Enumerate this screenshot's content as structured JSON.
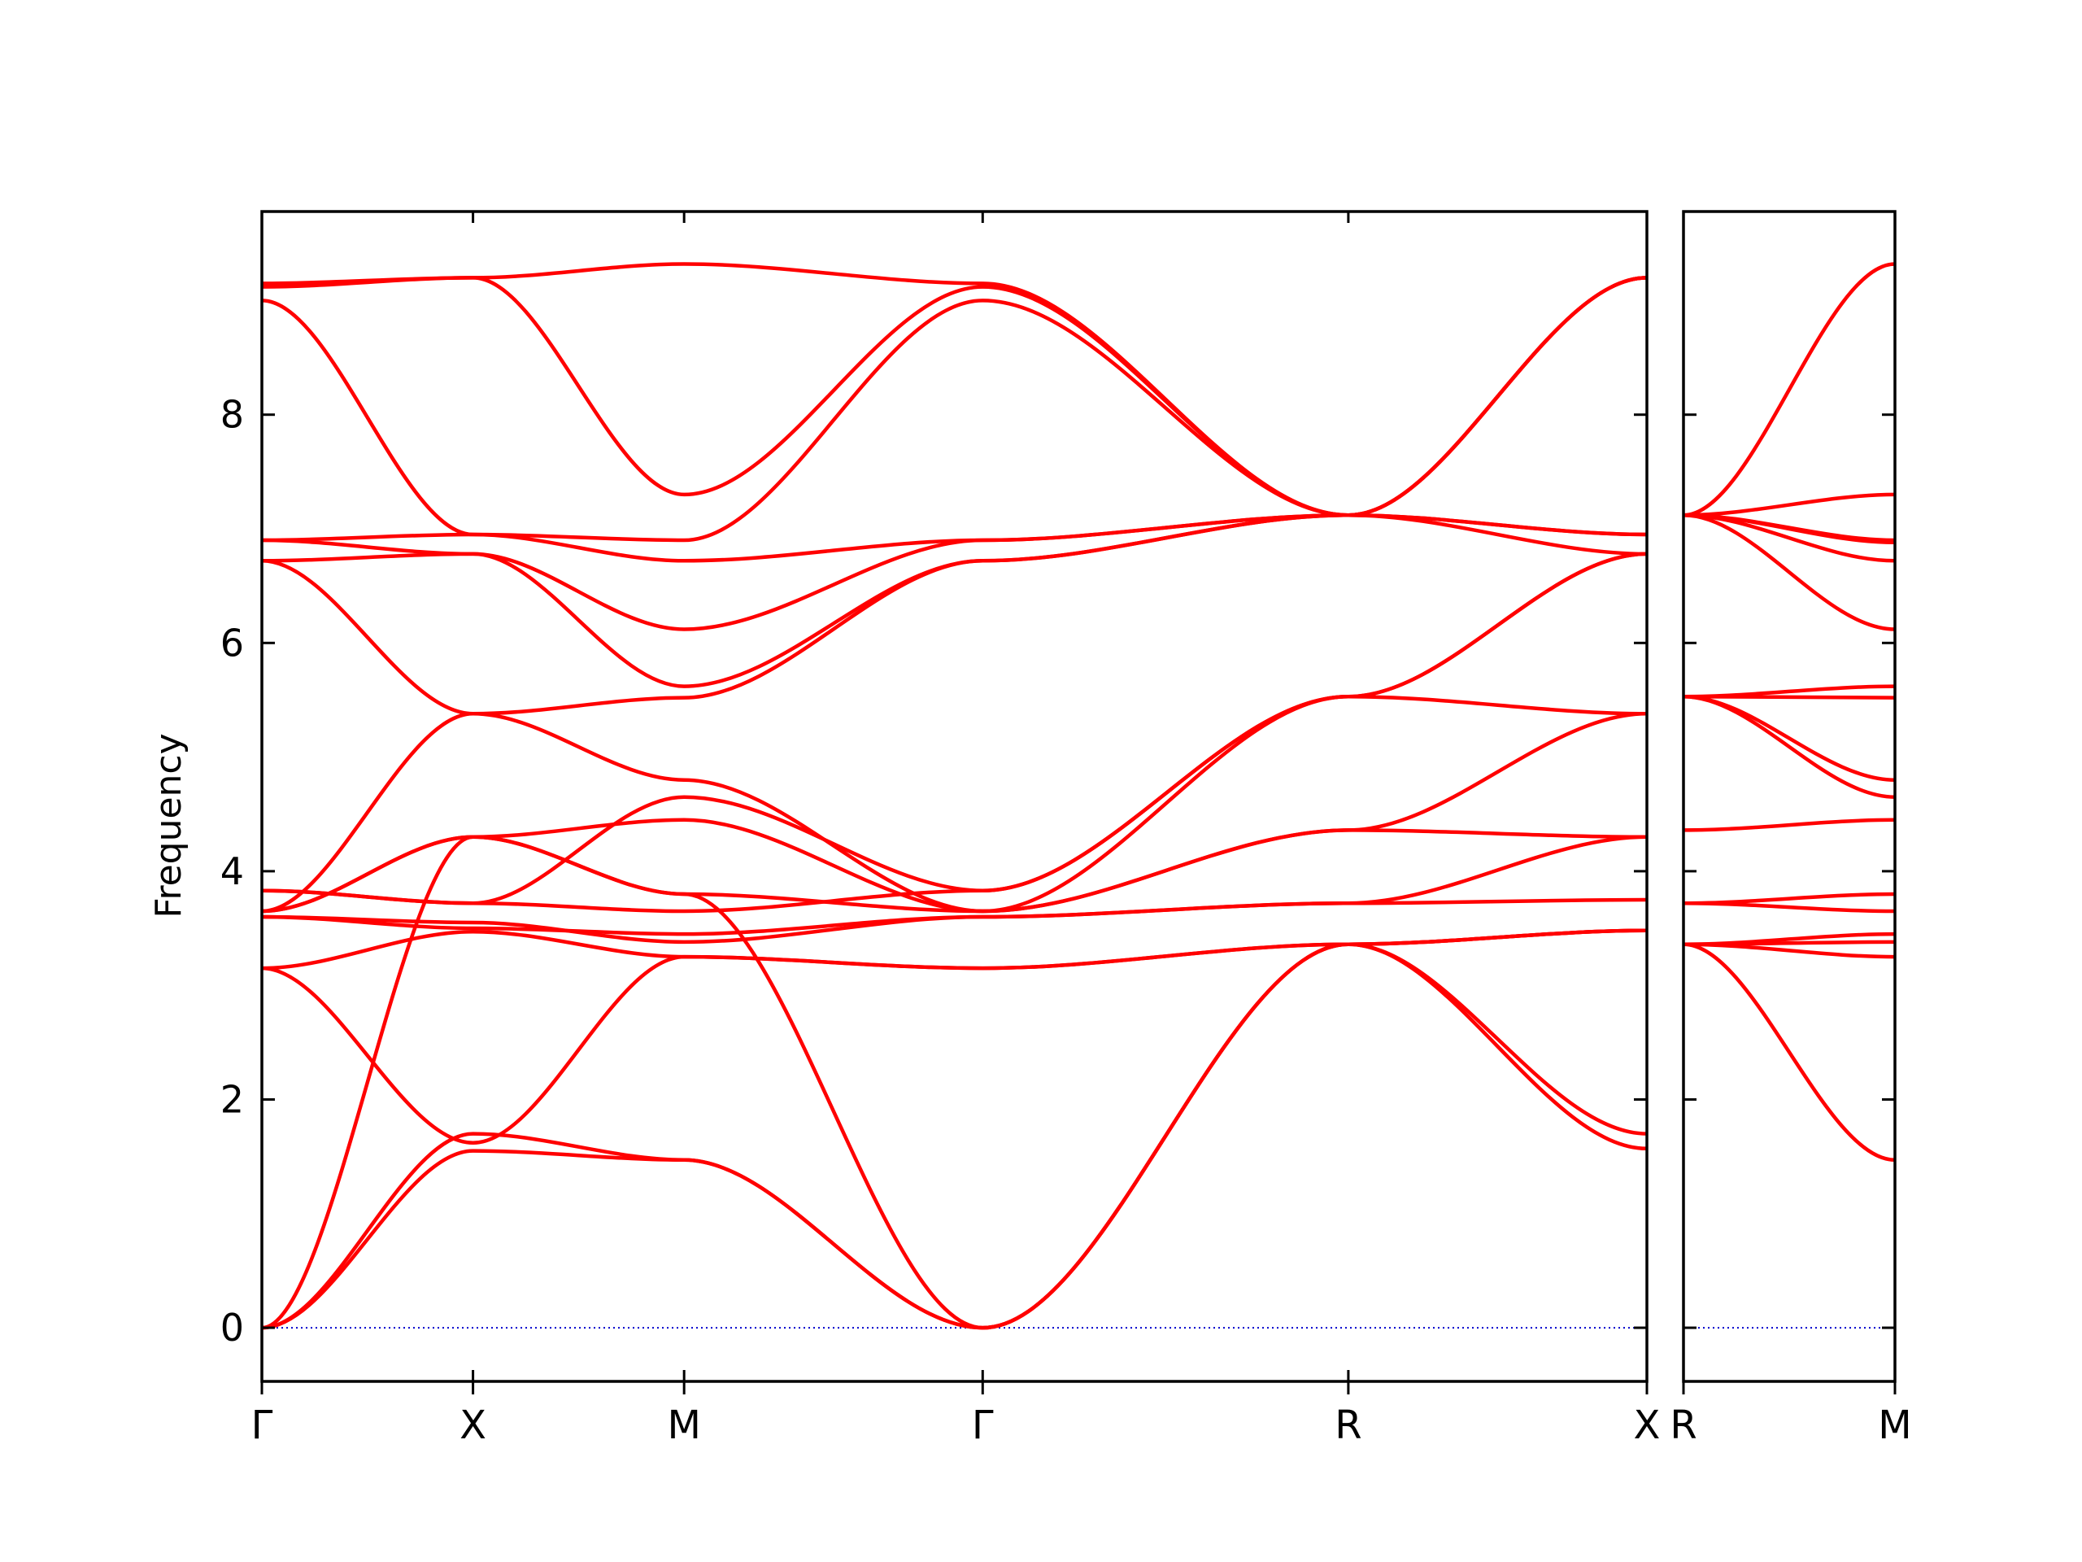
{
  "chart_data": {
    "type": "line",
    "title": "",
    "ylabel": "Frequency",
    "ylim": [
      -0.47,
      9.78
    ],
    "yticks": [
      0,
      2,
      4,
      6,
      8
    ],
    "grid": false,
    "legend": "none",
    "colors": {
      "bands": "#ff0000",
      "zero_line": "#0000cc",
      "axes": "#000000"
    },
    "panels": [
      {
        "name": "path-main",
        "segments": [
          {
            "from": "Γ",
            "to": "X",
            "length": 0.5
          },
          {
            "from": "X",
            "to": "M",
            "length": 0.5
          },
          {
            "from": "M",
            "to": "Γ",
            "length": 0.7071
          },
          {
            "from": "Γ",
            "to": "R",
            "length": 0.866
          },
          {
            "from": "R",
            "to": "X",
            "length": 0.7071
          }
        ],
        "tick_labels": [
          "Γ",
          "X",
          "M",
          "Γ",
          "R",
          "X"
        ],
        "bands": [
          [
            [
              0,
              0
            ],
            [
              0.5,
              1.55
            ],
            [
              1.0,
              1.47
            ],
            [
              1.7071,
              0
            ],
            [
              2.5731,
              3.36
            ],
            [
              3.2802,
              1.57
            ]
          ],
          [
            [
              0,
              0
            ],
            [
              0.5,
              1.7
            ],
            [
              1.0,
              1.47
            ],
            [
              1.7071,
              0
            ],
            [
              2.5731,
              3.36
            ],
            [
              3.2802,
              1.7
            ]
          ],
          [
            [
              0,
              0
            ],
            [
              0.5,
              4.3
            ],
            [
              1.0,
              3.8
            ],
            [
              1.7071,
              0
            ],
            [
              2.5731,
              3.36
            ],
            [
              3.2802,
              3.48
            ]
          ],
          [
            [
              0,
              3.15
            ],
            [
              0.5,
              1.62
            ],
            [
              1.0,
              3.25
            ],
            [
              1.7071,
              3.15
            ],
            [
              2.5731,
              3.36
            ],
            [
              3.2802,
              3.48
            ]
          ],
          [
            [
              0,
              3.15
            ],
            [
              0.5,
              3.47
            ],
            [
              1.0,
              3.25
            ],
            [
              1.7071,
              3.15
            ],
            [
              2.5731,
              3.36
            ],
            [
              3.2802,
              3.48
            ]
          ],
          [
            [
              0,
              3.6
            ],
            [
              0.5,
              3.5
            ],
            [
              1.0,
              3.45
            ],
            [
              1.7071,
              3.6
            ],
            [
              2.5731,
              3.72
            ],
            [
              3.2802,
              3.75
            ]
          ],
          [
            [
              0,
              3.6
            ],
            [
              0.5,
              3.55
            ],
            [
              1.0,
              3.38
            ],
            [
              1.7071,
              3.6
            ],
            [
              2.5731,
              3.72
            ],
            [
              3.2802,
              4.3
            ]
          ],
          [
            [
              0,
              3.65
            ],
            [
              0.5,
              4.3
            ],
            [
              1.0,
              3.8
            ],
            [
              1.7071,
              3.65
            ],
            [
              2.5731,
              4.36
            ],
            [
              3.2802,
              4.3
            ]
          ],
          [
            [
              0,
              3.65
            ],
            [
              0.5,
              4.3
            ],
            [
              1.0,
              4.45
            ],
            [
              1.7071,
              3.65
            ],
            [
              2.5731,
              4.36
            ],
            [
              3.2802,
              5.38
            ]
          ],
          [
            [
              0,
              3.83
            ],
            [
              0.5,
              3.72
            ],
            [
              1.0,
              3.65
            ],
            [
              1.7071,
              3.83
            ],
            [
              2.5731,
              5.53
            ],
            [
              3.2802,
              5.38
            ]
          ],
          [
            [
              0,
              3.83
            ],
            [
              0.5,
              3.72
            ],
            [
              1.0,
              4.65
            ],
            [
              1.7071,
              3.83
            ],
            [
              2.5731,
              5.53
            ],
            [
              3.2802,
              6.78
            ]
          ],
          [
            [
              0,
              3.65
            ],
            [
              0.5,
              5.38
            ],
            [
              1.0,
              4.8
            ],
            [
              1.7071,
              3.65
            ],
            [
              2.5731,
              5.53
            ],
            [
              3.2802,
              6.78
            ]
          ],
          [
            [
              0,
              6.72
            ],
            [
              0.5,
              5.38
            ],
            [
              1.0,
              5.52
            ],
            [
              1.7071,
              6.72
            ],
            [
              2.5731,
              7.12
            ],
            [
              3.2802,
              6.95
            ]
          ],
          [
            [
              0,
              6.72
            ],
            [
              0.5,
              6.78
            ],
            [
              1.0,
              5.62
            ],
            [
              1.7071,
              6.72
            ],
            [
              2.5731,
              7.12
            ],
            [
              3.2802,
              6.95
            ]
          ],
          [
            [
              0,
              6.9
            ],
            [
              0.5,
              6.78
            ],
            [
              1.0,
              6.12
            ],
            [
              1.7071,
              6.9
            ],
            [
              2.5731,
              7.12
            ],
            [
              3.2802,
              6.78
            ]
          ],
          [
            [
              0,
              6.9
            ],
            [
              0.5,
              6.95
            ],
            [
              1.0,
              6.72
            ],
            [
              1.7071,
              6.9
            ],
            [
              2.5731,
              7.12
            ],
            [
              3.2802,
              9.2
            ]
          ],
          [
            [
              0,
              9.0
            ],
            [
              0.5,
              6.95
            ],
            [
              1.0,
              6.9
            ],
            [
              1.7071,
              9.0
            ],
            [
              2.5731,
              7.12
            ],
            [
              3.2802,
              9.2
            ]
          ],
          [
            [
              0,
              9.12
            ],
            [
              0.5,
              9.2
            ],
            [
              1.0,
              7.3
            ],
            [
              1.7071,
              9.12
            ],
            [
              2.5731,
              7.12
            ],
            [
              3.2802,
              9.2
            ]
          ],
          [
            [
              0,
              9.15
            ],
            [
              0.5,
              9.2
            ],
            [
              1.0,
              9.32
            ],
            [
              1.7071,
              9.15
            ],
            [
              2.5731,
              7.12
            ],
            [
              3.2802,
              9.2
            ]
          ]
        ]
      },
      {
        "name": "path-side",
        "segments": [
          {
            "from": "R",
            "to": "M",
            "length": 0.7071
          }
        ],
        "tick_labels": [
          "R",
          "M"
        ],
        "bands": [
          [
            [
              0,
              3.36
            ],
            [
              0.7071,
              1.47
            ]
          ],
          [
            [
              0,
              3.36
            ],
            [
              0.7071,
              3.25
            ]
          ],
          [
            [
              0,
              3.36
            ],
            [
              0.7071,
              3.38
            ]
          ],
          [
            [
              0,
              3.36
            ],
            [
              0.7071,
              3.45
            ]
          ],
          [
            [
              0,
              3.72
            ],
            [
              0.7071,
              3.65
            ]
          ],
          [
            [
              0,
              3.72
            ],
            [
              0.7071,
              3.8
            ]
          ],
          [
            [
              0,
              4.36
            ],
            [
              0.7071,
              4.45
            ]
          ],
          [
            [
              0,
              5.53
            ],
            [
              0.7071,
              4.65
            ]
          ],
          [
            [
              0,
              5.53
            ],
            [
              0.7071,
              4.8
            ]
          ],
          [
            [
              0,
              5.53
            ],
            [
              0.7071,
              5.52
            ]
          ],
          [
            [
              0,
              5.53
            ],
            [
              0.7071,
              5.62
            ]
          ],
          [
            [
              0,
              7.12
            ],
            [
              0.7071,
              6.12
            ]
          ],
          [
            [
              0,
              7.12
            ],
            [
              0.7071,
              6.72
            ]
          ],
          [
            [
              0,
              7.12
            ],
            [
              0.7071,
              6.88
            ]
          ],
          [
            [
              0,
              7.12
            ],
            [
              0.7071,
              6.9
            ]
          ],
          [
            [
              0,
              7.12
            ],
            [
              0.7071,
              7.3
            ]
          ],
          [
            [
              0,
              7.12
            ],
            [
              0.7071,
              9.32
            ]
          ]
        ]
      }
    ]
  }
}
